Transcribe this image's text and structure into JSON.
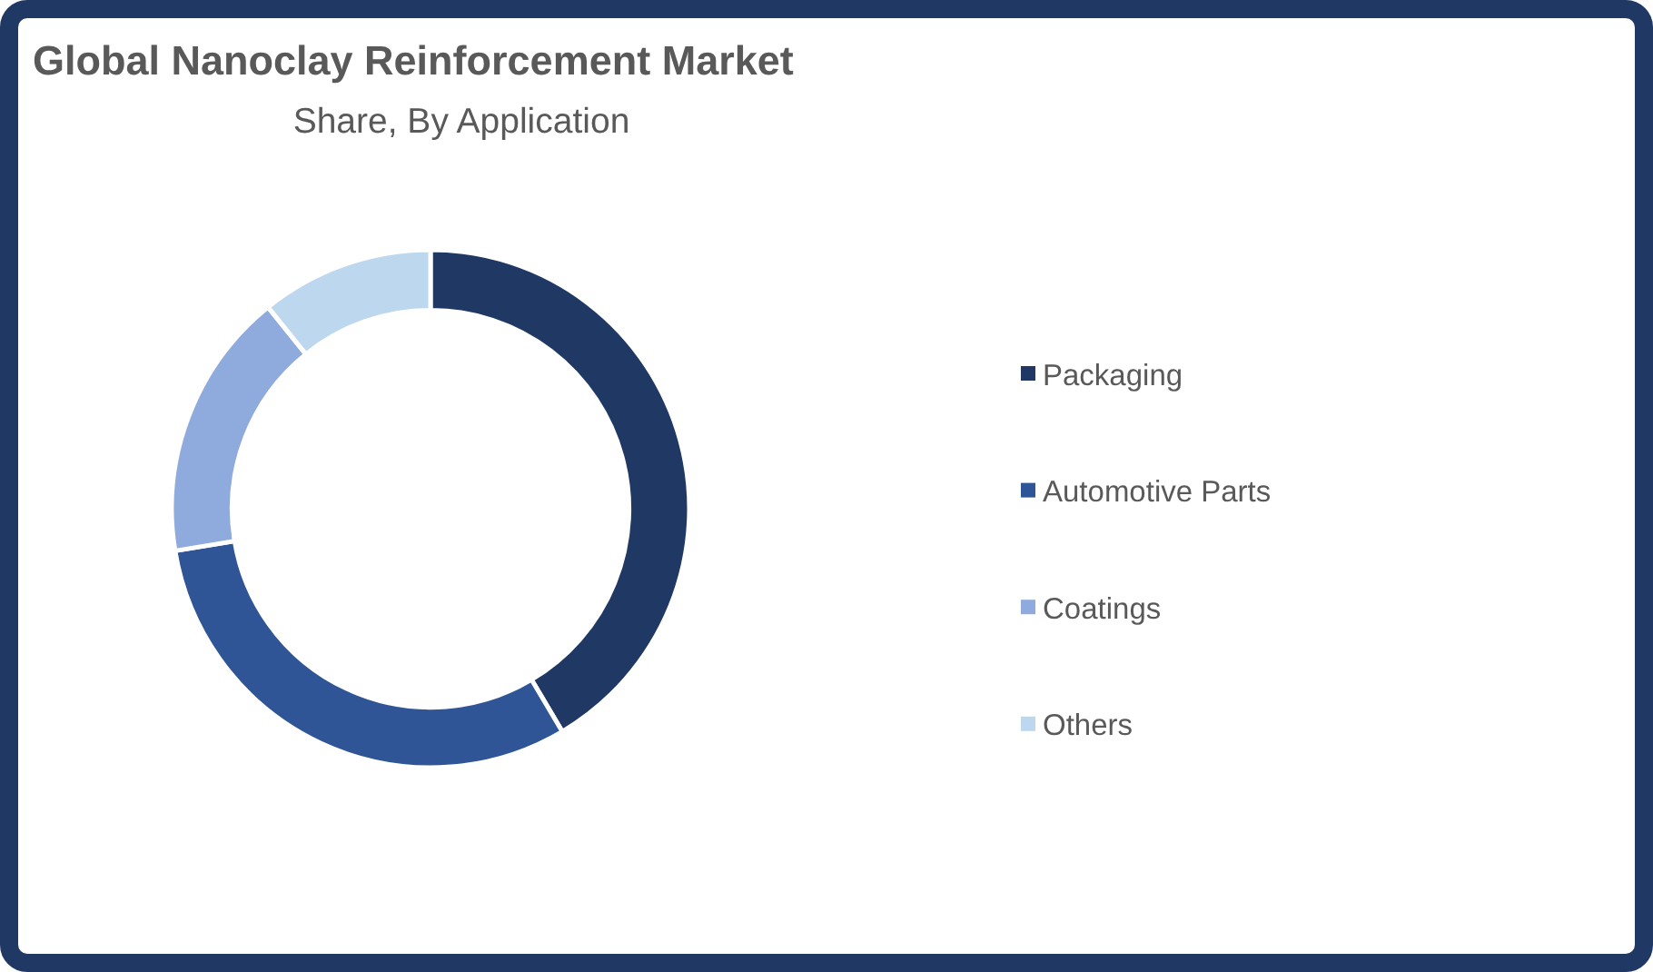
{
  "chart_data": {
    "type": "donut",
    "title": "Global Nanoclay Reinforcement Market",
    "subtitle": "Share, By Application",
    "categories": [
      "Packaging",
      "Automotive Parts",
      "Coatings",
      "Others"
    ],
    "values": [
      41.5,
      30.9,
      16.8,
      10.8
    ],
    "colors": [
      "#203864",
      "#2f5597",
      "#8faadc",
      "#bdd7ee"
    ],
    "legend": "right"
  }
}
